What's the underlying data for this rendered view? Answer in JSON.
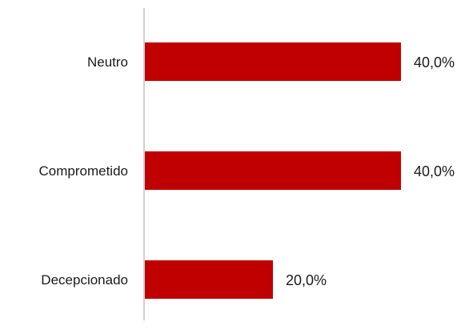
{
  "chart_data": {
    "type": "bar",
    "orientation": "horizontal",
    "categories": [
      "Neutro",
      "Comprometido",
      "Decepcionado"
    ],
    "values": [
      40.0,
      40.0,
      20.0
    ],
    "value_labels": [
      "40,0%",
      "40,0%",
      "20,0%"
    ],
    "xlim": [
      0,
      40
    ],
    "grid": false,
    "legend": "none",
    "bar_color": "#c00000",
    "axis_color": "#bfbfbf"
  }
}
